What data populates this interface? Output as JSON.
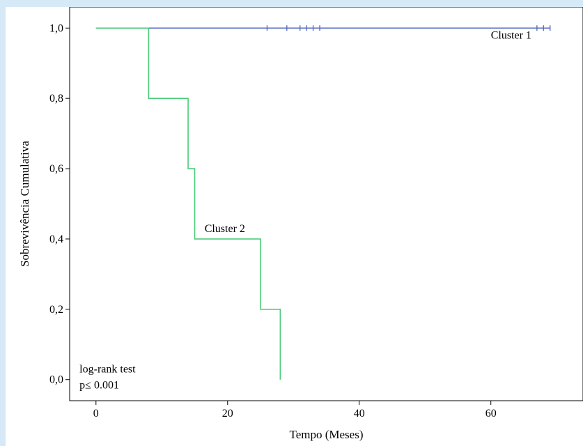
{
  "chart_data": {
    "type": "line",
    "subtype": "kaplan-meier",
    "title": "",
    "xlabel": "Tempo (Meses)",
    "ylabel": "Sobrevivência Cumulativa",
    "xlim": [
      -4,
      74
    ],
    "ylim": [
      -0.06,
      1.06
    ],
    "xticks": [
      0,
      20,
      40,
      60
    ],
    "xtick_labels": [
      "0",
      "20",
      "40",
      "60"
    ],
    "yticks": [
      0.0,
      0.2,
      0.4,
      0.6,
      0.8,
      1.0
    ],
    "ytick_labels": [
      "0,0",
      "0,2",
      "0,4",
      "0,6",
      "0,8",
      "1,0"
    ],
    "grid": false,
    "series": [
      {
        "name": "Cluster 1",
        "color": "#5a6fc0",
        "steps": [
          [
            0,
            1.0
          ],
          [
            69,
            1.0
          ]
        ],
        "censored": [
          26,
          29,
          31,
          32,
          33,
          34,
          67,
          68,
          69
        ]
      },
      {
        "name": "Cluster 2",
        "color": "#4ccb7a",
        "steps": [
          [
            0,
            1.0
          ],
          [
            8,
            0.8
          ],
          [
            14,
            0.6
          ],
          [
            15,
            0.4
          ],
          [
            25,
            0.2
          ],
          [
            28,
            0.0
          ]
        ],
        "censored": []
      }
    ],
    "annotations": [
      {
        "id": "cluster1",
        "text": "Cluster 1",
        "x": 60,
        "y": 0.97
      },
      {
        "id": "cluster2",
        "text": "Cluster 2",
        "x": 16.5,
        "y": 0.42
      },
      {
        "id": "logrank1",
        "text": "log-rank test",
        "x": -2.5,
        "y": 0.02
      },
      {
        "id": "logrank2",
        "text": "p≤ 0.001",
        "x": -2.5,
        "y": -0.025
      }
    ]
  }
}
